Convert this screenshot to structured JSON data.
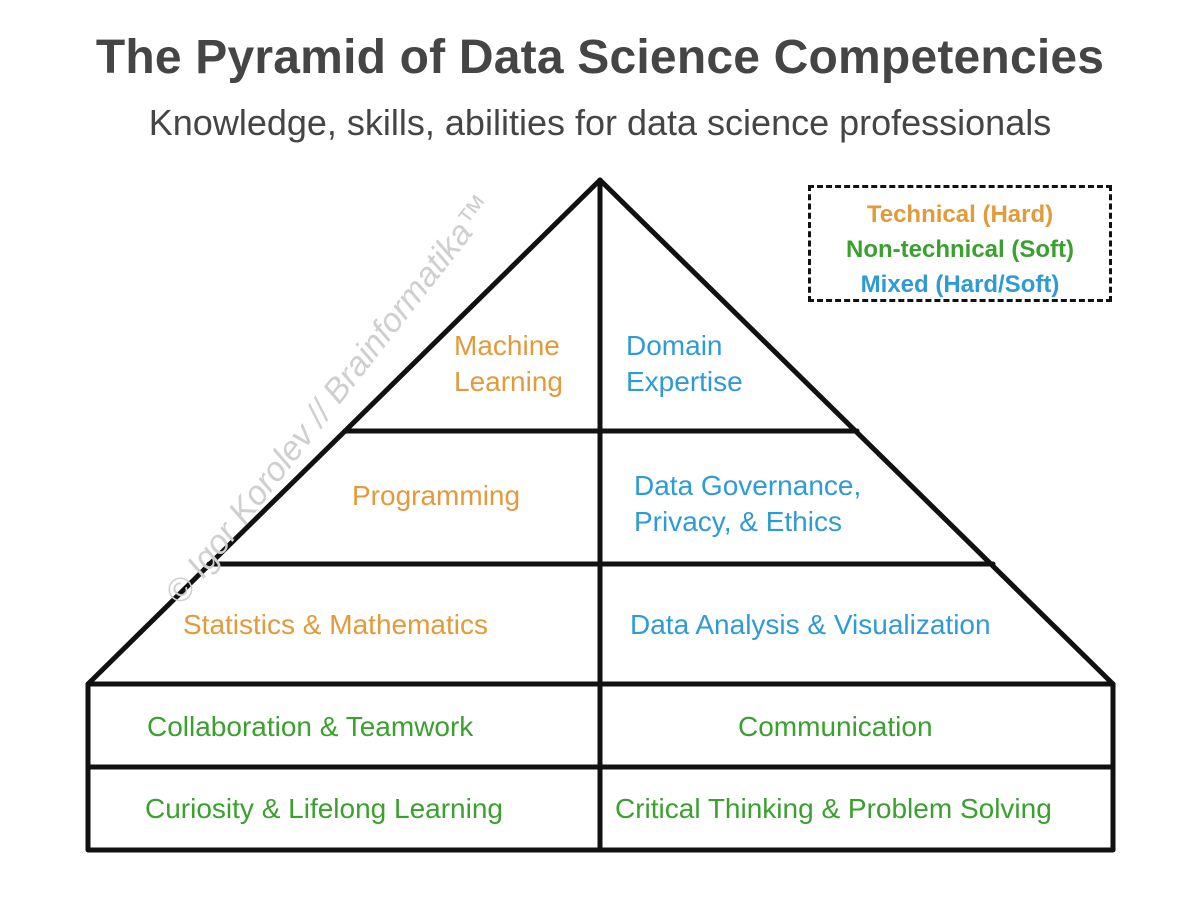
{
  "header": {
    "title": "The Pyramid of Data Science Competencies",
    "subtitle": "Knowledge, skills, abilities for data science professionals"
  },
  "legend": {
    "technical": "Technical (Hard)",
    "non_technical": "Non-technical (Soft)",
    "mixed": "Mixed (Hard/Soft)"
  },
  "colors": {
    "technical": "#E39A3B",
    "non_technical": "#3AA02E",
    "mixed": "#2E9BD6",
    "outline": "#111111",
    "text": "#454545"
  },
  "pyramid": {
    "machine_learning": "Machine\nLearning",
    "domain_expertise": "Domain\nExpertise",
    "programming": "Programming",
    "data_governance": "Data Governance,\nPrivacy, & Ethics",
    "statistics": "Statistics & Mathematics",
    "data_analysis": "Data Analysis & Visualization"
  },
  "foundation": {
    "collaboration": "Collaboration & Teamwork",
    "communication": "Communication",
    "curiosity": "Curiosity & Lifelong Learning",
    "critical_thinking": "Critical Thinking & Problem Solving"
  },
  "watermark": "© Igor Korolev // Brainformatika™"
}
